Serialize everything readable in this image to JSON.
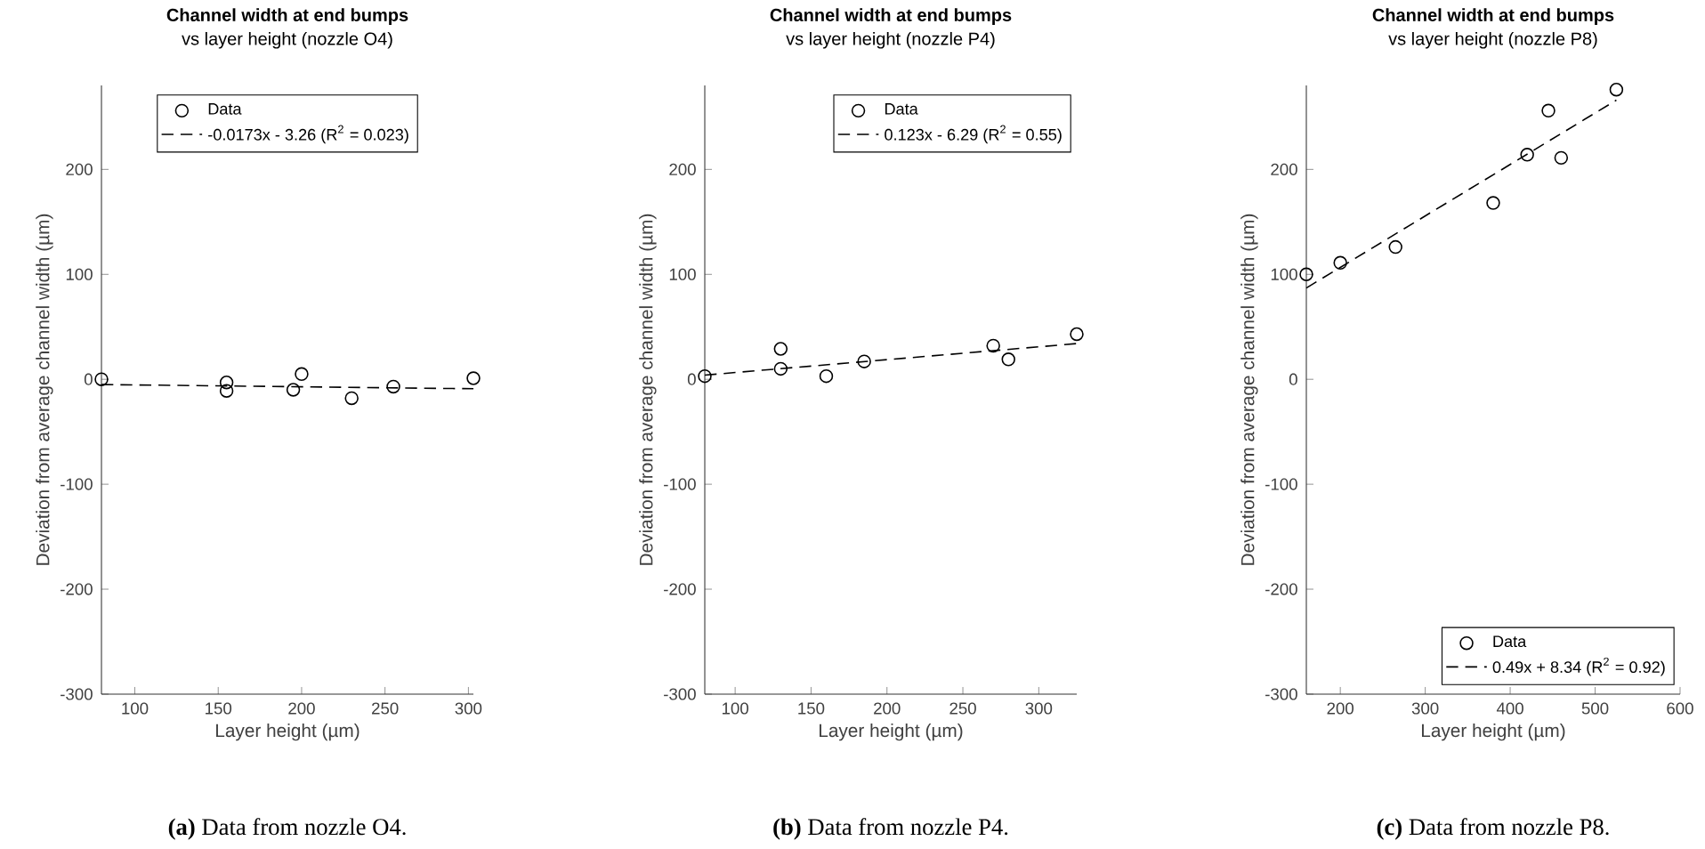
{
  "chart_data": [
    {
      "type": "scatter",
      "title": "Channel width at end bumps",
      "subtitle": "vs layer height (nozzle O4)",
      "xlabel": "Layer height (µm)",
      "ylabel": "Deviation from average channel width (µm)",
      "annotations": [
        "**(a)** Data from nozzle O4."
      ],
      "xlim": [
        80,
        303
      ],
      "ylim": [
        -300,
        280
      ],
      "xticks": [
        100,
        150,
        200,
        250,
        300
      ],
      "yticks": [
        -300,
        -200,
        -100,
        0,
        100,
        200
      ],
      "grid": false,
      "legend": "top",
      "series": [
        {
          "name": "Data",
          "marker": "circle",
          "color": "#000000",
          "x": [
            80,
            155,
            155,
            195,
            200,
            230,
            255,
            303
          ],
          "values": [
            0,
            -3,
            -11,
            -10,
            5,
            -18,
            -7,
            1
          ]
        },
        {
          "name": "-0.0173x - 3.26 (R$^{2}$ = 0.023)",
          "type": "line",
          "line_style": "dashed",
          "color": "#000000",
          "x": [
            80,
            303
          ],
          "values": [
            -5,
            -9
          ]
        }
      ]
    },
    {
      "type": "scatter",
      "title": "Channel width at end bumps",
      "subtitle": "vs layer height (nozzle P4)",
      "xlabel": "Layer height (µm)",
      "ylabel": "Deviation from average channel width (µm)",
      "annotations": [
        "**(b)** Data from nozzle P4."
      ],
      "xlim": [
        80,
        325
      ],
      "ylim": [
        -300,
        280
      ],
      "xticks": [
        100,
        150,
        200,
        250,
        300
      ],
      "yticks": [
        -300,
        -200,
        -100,
        0,
        100,
        200
      ],
      "grid": false,
      "legend": "top right",
      "series": [
        {
          "name": "Data",
          "marker": "circle",
          "color": "#000000",
          "x": [
            80,
            130,
            130,
            160,
            185,
            270,
            280,
            325
          ],
          "values": [
            3,
            29,
            10,
            3,
            17,
            32,
            19,
            43
          ]
        },
        {
          "name": "0.123x - 6.29 (R$^{2}$ = 0.55)",
          "type": "line",
          "line_style": "dashed",
          "color": "#000000",
          "x": [
            80,
            325
          ],
          "values": [
            4,
            34
          ]
        }
      ]
    },
    {
      "type": "scatter",
      "title": "Channel width at end bumps",
      "subtitle": "vs layer height (nozzle P8)",
      "xlabel": "Layer height (µm)",
      "ylabel": "Deviation from average channel width (µm)",
      "annotations": [
        "**(c)** Data from nozzle P8."
      ],
      "xlim": [
        160,
        600
      ],
      "ylim": [
        -300,
        280
      ],
      "xticks": [
        200,
        300,
        400,
        500,
        600
      ],
      "yticks": [
        -300,
        -200,
        -100,
        0,
        100,
        200
      ],
      "grid": false,
      "legend": "bottom right",
      "series": [
        {
          "name": "Data",
          "marker": "circle",
          "color": "#000000",
          "x": [
            160,
            200,
            265,
            380,
            420,
            445,
            460,
            525
          ],
          "values": [
            100,
            111,
            126,
            168,
            214,
            256,
            211,
            276
          ]
        },
        {
          "name": "0.49x + 8.34 (R$^{2}$ = 0.92)",
          "type": "line",
          "line_style": "dashed",
          "color": "#000000",
          "x": [
            160,
            525
          ],
          "values": [
            87,
            266
          ]
        }
      ]
    }
  ]
}
